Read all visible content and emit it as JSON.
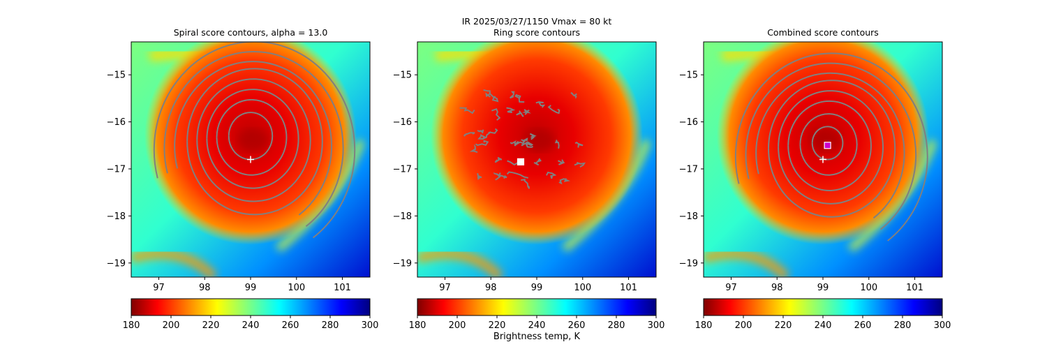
{
  "figure": {
    "suptitle_line1": "IR  2025/03/27/1150    Vmax = 80 kt",
    "colorbar_label": "Brightness temp, K"
  },
  "colorbar": {
    "colormap": "jet_r",
    "range": [
      180,
      300
    ],
    "ticks": [
      "180",
      "200",
      "220",
      "240",
      "260",
      "280",
      "300"
    ]
  },
  "chart_data": [
    {
      "type": "heatmap",
      "title": "Spiral score contours, alpha = 13.0",
      "xlim": [
        96.4,
        101.6
      ],
      "ylim": [
        -19.3,
        -14.3
      ],
      "xticks": [
        "97",
        "98",
        "99",
        "100",
        "101"
      ],
      "yticks": [
        "−15",
        "−16",
        "−17",
        "−18",
        "−19"
      ],
      "storm": {
        "lon": 99.0,
        "lat": -16.3,
        "radius_deg": 1.85,
        "core_temp": 188,
        "background_temp": 245
      },
      "contour_center": {
        "lon": 99.0,
        "lat": -16.3
      },
      "contour_radii_deg": [
        0.5,
        0.8,
        1.05,
        1.3,
        1.55,
        1.8,
        2.05,
        2.3
      ],
      "markers": [
        {
          "type": "plus",
          "lon": 99.0,
          "lat": -16.8,
          "color": "#ffffff"
        }
      ]
    },
    {
      "type": "heatmap",
      "title": "Ring score contours",
      "xlim": [
        96.4,
        101.6
      ],
      "ylim": [
        -19.3,
        -14.3
      ],
      "xticks": [
        "97",
        "98",
        "99",
        "100",
        "101"
      ],
      "yticks": [
        "−15",
        "−16",
        "−17",
        "−18",
        "−19"
      ],
      "storm": {
        "lon": 99.0,
        "lat": -16.3,
        "radius_deg": 1.85,
        "core_temp": 188,
        "background_temp": 245
      },
      "contour_region": {
        "lon": [
          97.6,
          99.9
        ],
        "lat": [
          -17.3,
          -15.4
        ]
      },
      "markers": [
        {
          "type": "square",
          "lon": 98.65,
          "lat": -16.85,
          "color": "#ffffff"
        }
      ]
    },
    {
      "type": "heatmap",
      "title": "Combined score contours",
      "xlim": [
        96.4,
        101.6
      ],
      "ylim": [
        -19.3,
        -14.3
      ],
      "xticks": [
        "97",
        "98",
        "99",
        "100",
        "101"
      ],
      "yticks": [
        "−15",
        "−16",
        "−17",
        "−18",
        "−19"
      ],
      "storm": {
        "lon": 99.0,
        "lat": -16.3,
        "radius_deg": 1.85,
        "core_temp": 188,
        "background_temp": 245
      },
      "contour_center": {
        "lon": 99.1,
        "lat": -16.45
      },
      "contour_radii_deg": [
        0.35,
        0.65,
        0.95,
        1.2,
        1.45,
        1.7,
        1.95,
        2.2
      ],
      "markers": [
        {
          "type": "plus",
          "lon": 99.0,
          "lat": -16.8,
          "color": "#ffffff"
        },
        {
          "type": "square",
          "lon": 99.1,
          "lat": -16.5,
          "color": "#cc00cc"
        }
      ]
    }
  ]
}
